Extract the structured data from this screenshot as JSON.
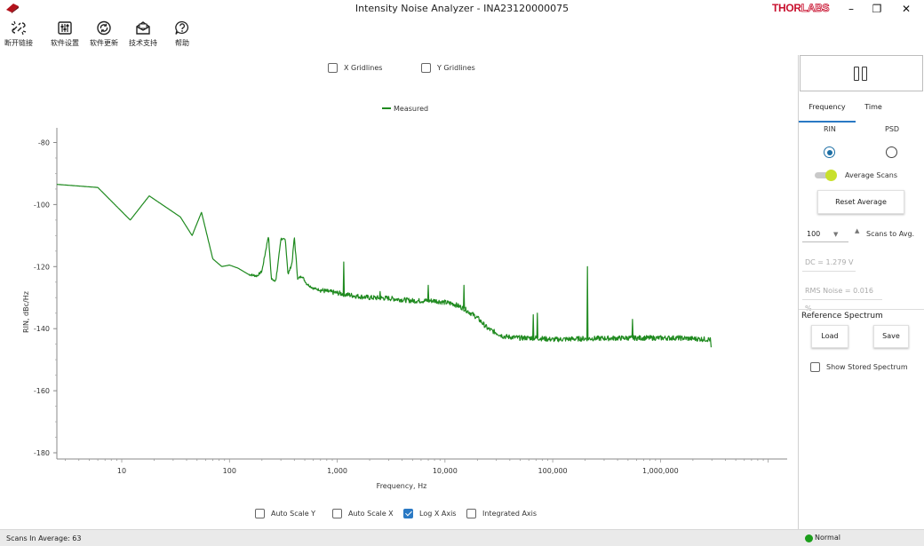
{
  "window": {
    "title": "Intensity Noise Analyzer - INA23120000075",
    "brand_a": "THOR",
    "brand_b": "LABS",
    "minimize_glyph": "–",
    "maximize_glyph": "❐",
    "close_glyph": "✕"
  },
  "toolbar": {
    "items": [
      {
        "label": "断开链接",
        "icon": "disconnect-icon"
      },
      {
        "label": "软件设置",
        "icon": "settings-icon"
      },
      {
        "label": "软件更新",
        "icon": "update-icon"
      },
      {
        "label": "技术支持",
        "icon": "support-icon"
      },
      {
        "label": "帮助",
        "icon": "help-icon"
      }
    ]
  },
  "chart_options": {
    "x_gridlines": {
      "label": "X Gridlines",
      "checked": false
    },
    "y_gridlines": {
      "label": "Y Gridlines",
      "checked": false
    },
    "auto_scale_y": {
      "label": "Auto Scale Y",
      "checked": false
    },
    "auto_scale_x": {
      "label": "Auto Scale X",
      "checked": false
    },
    "log_x_axis": {
      "label": "Log X Axis",
      "checked": true
    },
    "integrated_axis": {
      "label": "Integrated Axis",
      "checked": false
    }
  },
  "chart_data": {
    "type": "line",
    "xlabel": "Frequency, Hz",
    "ylabel": "RIN, dBc/Hz",
    "x_scale": "log",
    "xlim": [
      2.5,
      15000000
    ],
    "ylim": [
      -182,
      -77
    ],
    "x_ticks": [
      10,
      100,
      1000,
      10000,
      100000,
      1000000
    ],
    "x_tick_labels": [
      "10",
      "100",
      "1,000",
      "10,000",
      "100,000",
      "1,000,000"
    ],
    "y_ticks": [
      -80,
      -100,
      -120,
      -140,
      -160,
      -180
    ],
    "y_tick_labels": [
      "-80",
      "-100",
      "-120",
      "-140",
      "-160",
      "-180"
    ],
    "grid": false,
    "legend_position": "top-center",
    "series": [
      {
        "name": "Measured",
        "color": "#1f8a1f",
        "points": [
          [
            2.5,
            -93.5
          ],
          [
            6,
            -94.5
          ],
          [
            12,
            -105
          ],
          [
            18,
            -97.2
          ],
          [
            35,
            -104
          ],
          [
            45,
            -110
          ],
          [
            55,
            -102.5
          ],
          [
            70,
            -117.5
          ],
          [
            85,
            -120
          ],
          [
            100,
            -119.5
          ],
          [
            120,
            -120.5
          ],
          [
            150,
            -122.5
          ],
          [
            180,
            -123
          ],
          [
            200,
            -121.5
          ],
          [
            230,
            -110
          ],
          [
            245,
            -124
          ],
          [
            270,
            -124.5
          ],
          [
            300,
            -111
          ],
          [
            330,
            -111.5
          ],
          [
            350,
            -122.5
          ],
          [
            380,
            -119
          ],
          [
            400,
            -110.5
          ],
          [
            430,
            -124
          ],
          [
            470,
            -123
          ],
          [
            520,
            -125.5
          ],
          [
            600,
            -127
          ],
          [
            800,
            -128
          ],
          [
            1000,
            -128.5
          ],
          [
            1500,
            -129.5
          ],
          [
            2000,
            -130
          ],
          [
            3000,
            -130.2
          ],
          [
            5000,
            -131
          ],
          [
            8000,
            -131
          ],
          [
            12000,
            -132
          ],
          [
            15000,
            -133.5
          ],
          [
            20000,
            -136.5
          ],
          [
            25000,
            -140
          ],
          [
            35000,
            -142.5
          ],
          [
            50000,
            -143
          ],
          [
            70000,
            -143
          ],
          [
            100000,
            -143.5
          ],
          [
            200000,
            -143.2
          ],
          [
            500000,
            -143
          ],
          [
            1000000,
            -143
          ],
          [
            1500000,
            -143
          ],
          [
            2900000,
            -143.5
          ]
        ],
        "spikes": [
          [
            1150,
            -118.5
          ],
          [
            2500,
            -128
          ],
          [
            7000,
            -126
          ],
          [
            15000,
            -126
          ],
          [
            66000,
            -135.5
          ],
          [
            72000,
            -135
          ],
          [
            210000,
            -120
          ],
          [
            550000,
            -137
          ]
        ]
      }
    ]
  },
  "panel": {
    "tabs": [
      {
        "label": "Frequency",
        "active": true
      },
      {
        "label": "Time",
        "active": false
      }
    ],
    "rin_label": "RIN",
    "psd_label": "PSD",
    "average_scans_label": "Average Scans",
    "average_on": true,
    "reset_average_label": "Reset Average",
    "scans_value": "100",
    "scans_label": "Scans to Avg.",
    "dc_text": "DC = 1.279 V",
    "rms_text": "RMS Noise = 0.016 %",
    "reference_title": "Reference Spectrum",
    "load_label": "Load",
    "save_label": "Save",
    "show_stored_label": "Show Stored Spectrum"
  },
  "status": {
    "scans_text": "Scans In Average: 63",
    "state_text": "Normal",
    "state_color": "#1b9e1b"
  }
}
